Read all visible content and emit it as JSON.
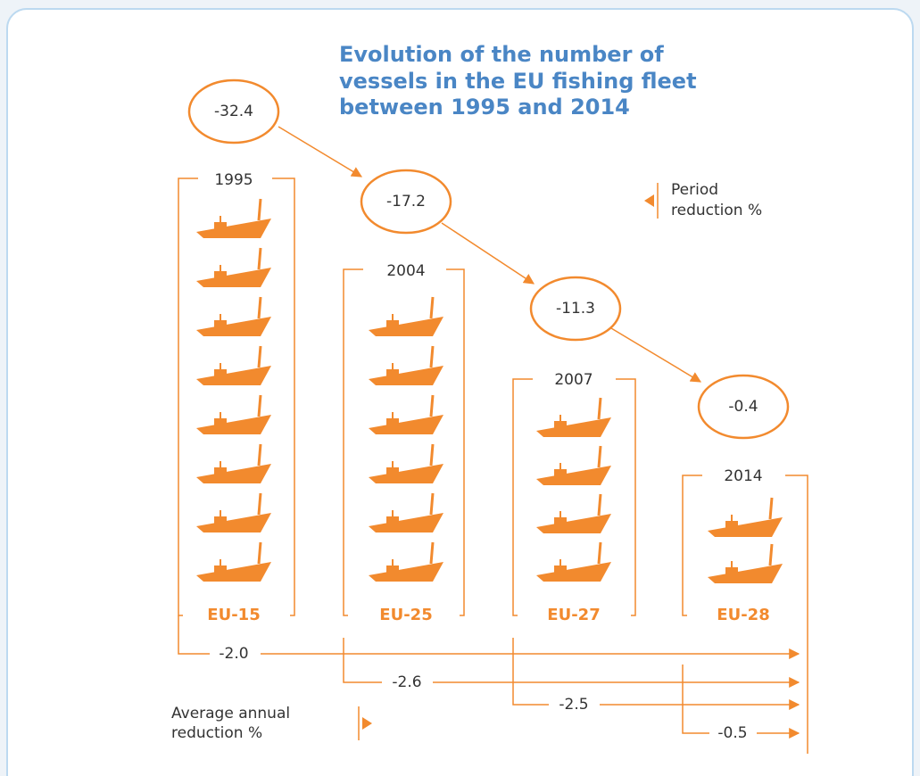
{
  "title_lines": [
    "Evolution of the number of",
    "vessels in the EU fishing fleet",
    "between 1995 and 2014"
  ],
  "columns": [
    {
      "year": "1995",
      "label": "EU-15"
    },
    {
      "year": "2004",
      "label": "EU-25"
    },
    {
      "year": "2007",
      "label": "EU-27"
    },
    {
      "year": "2014",
      "label": "EU-28"
    }
  ],
  "period_reductions": [
    "-32.4",
    "-17.2",
    "-11.3",
    "-0.4"
  ],
  "annual_reductions": [
    "-2.0",
    "-2.6",
    "-2.5",
    "-0.5"
  ],
  "legend_period": [
    "Period",
    "reduction %"
  ],
  "legend_annual": [
    "Average annual",
    "reduction %"
  ]
}
